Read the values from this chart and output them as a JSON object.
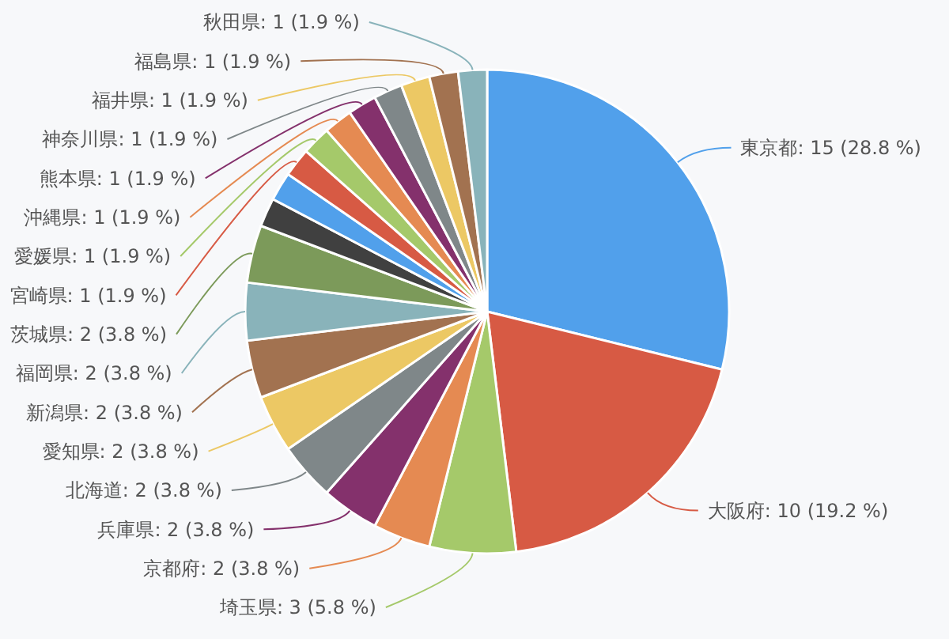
{
  "chart_data": {
    "type": "pie",
    "categories": [
      "東京都",
      "大阪府",
      "埼玉県",
      "京都府",
      "兵庫県",
      "北海道",
      "愛知県",
      "新潟県",
      "福岡県",
      "茨城県",
      null,
      null,
      "宮崎県",
      "愛媛県",
      "沖縄県",
      "熊本県",
      "神奈川県",
      "福井県",
      "福島県",
      "秋田県"
    ],
    "values": [
      15,
      10,
      3,
      2,
      2,
      2,
      2,
      2,
      2,
      2,
      1,
      1,
      1,
      1,
      1,
      1,
      1,
      1,
      1,
      1
    ],
    "value_labels": [
      "15 (28.8 %)",
      "10 (19.2 %)",
      "3 (5.8 %)",
      "2 (3.8 %)",
      "2 (3.8 %)",
      "2 (3.8 %)",
      "2 (3.8 %)",
      "2 (3.8 %)",
      "2 (3.8 %)",
      "2 (3.8 %)",
      null,
      null,
      "1 (1.9 %)",
      "1 (1.9 %)",
      "1 (1.9 %)",
      "1 (1.9 %)",
      "1 (1.9 %)",
      "1 (1.9 %)",
      "1 (1.9 %)",
      "1 (1.9 %)"
    ],
    "colors": [
      "#51a0eb",
      "#d75a44",
      "#a5c96a",
      "#e58a52",
      "#84316c",
      "#7f8789",
      "#ecc864",
      "#a27250",
      "#89b3ba",
      "#7c9a5a",
      "#404040",
      "#51a0eb",
      "#d75a44",
      "#a5c96a",
      "#e58a52",
      "#84316c",
      "#7f8789",
      "#ecc864",
      "#a27250",
      "#89b3ba"
    ]
  }
}
